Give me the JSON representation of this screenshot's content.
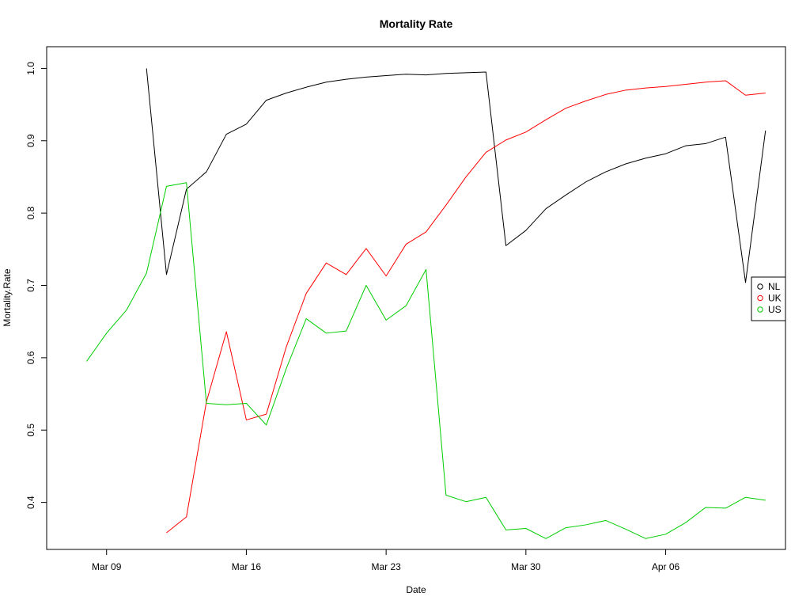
{
  "chart_data": {
    "type": "line",
    "title": "Mortality Rate",
    "xlabel": "Date",
    "ylabel": "Mortality.Rate",
    "x_ticks": [
      "Mar 09",
      "Mar 16",
      "Mar 23",
      "Mar 30",
      "Apr 06"
    ],
    "y_ticks": [
      "0.4",
      "0.5",
      "0.6",
      "0.7",
      "0.8",
      "0.9",
      "1.0"
    ],
    "xlim": [
      "2020-03-06",
      "2020-04-12"
    ],
    "ylim": [
      0.335,
      1.03
    ],
    "grid": false,
    "legend_position": "right",
    "x": [
      "2020-03-08",
      "2020-03-09",
      "2020-03-10",
      "2020-03-11",
      "2020-03-12",
      "2020-03-13",
      "2020-03-14",
      "2020-03-15",
      "2020-03-16",
      "2020-03-17",
      "2020-03-18",
      "2020-03-19",
      "2020-03-20",
      "2020-03-21",
      "2020-03-22",
      "2020-03-23",
      "2020-03-24",
      "2020-03-25",
      "2020-03-26",
      "2020-03-27",
      "2020-03-28",
      "2020-03-29",
      "2020-03-30",
      "2020-03-31",
      "2020-04-01",
      "2020-04-02",
      "2020-04-03",
      "2020-04-04",
      "2020-04-05",
      "2020-04-06",
      "2020-04-07",
      "2020-04-08",
      "2020-04-09",
      "2020-04-10",
      "2020-04-11"
    ],
    "series": [
      {
        "name": "NL",
        "color": "#000000",
        "values": [
          null,
          null,
          null,
          1.0,
          0.715,
          0.833,
          0.857,
          0.909,
          0.923,
          0.956,
          0.966,
          0.974,
          0.981,
          0.985,
          0.988,
          0.99,
          0.992,
          0.991,
          0.993,
          0.994,
          0.995,
          0.755,
          0.776,
          0.806,
          0.825,
          0.843,
          0.857,
          0.868,
          0.876,
          0.882,
          0.893,
          0.896,
          0.905,
          0.704,
          0.914
        ]
      },
      {
        "name": "UK",
        "color": "#ff0000",
        "values": [
          null,
          null,
          null,
          null,
          0.358,
          0.38,
          0.539,
          0.636,
          0.514,
          0.522,
          0.615,
          0.689,
          0.731,
          0.715,
          0.751,
          0.713,
          0.757,
          0.774,
          0.811,
          0.85,
          0.884,
          0.901,
          0.912,
          0.929,
          0.945,
          0.955,
          0.964,
          0.97,
          0.973,
          0.975,
          0.978,
          0.981,
          0.983,
          0.963,
          0.966
        ]
      },
      {
        "name": "US",
        "color": "#00cd00",
        "values": [
          0.595,
          0.634,
          0.666,
          0.717,
          0.837,
          0.842,
          0.537,
          0.535,
          0.537,
          0.507,
          0.585,
          0.654,
          0.634,
          0.637,
          0.7,
          0.652,
          0.672,
          0.722,
          0.41,
          0.401,
          0.407,
          0.362,
          0.364,
          0.35,
          0.365,
          0.369,
          0.375,
          0.363,
          0.35,
          0.356,
          0.372,
          0.393,
          0.392,
          0.407,
          0.403
        ]
      }
    ],
    "legend": [
      "NL",
      "UK",
      "US"
    ]
  }
}
